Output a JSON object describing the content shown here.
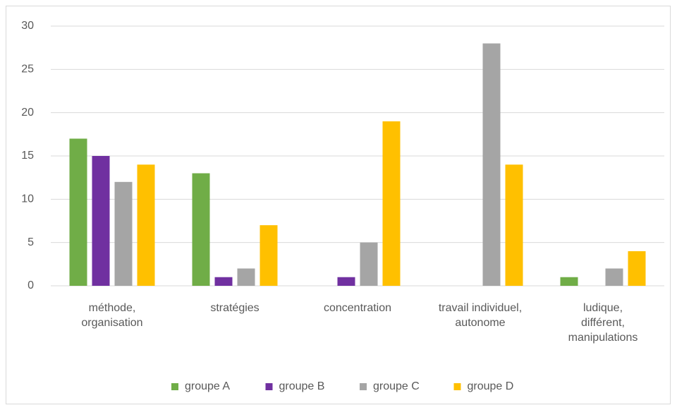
{
  "chart_data": {
    "type": "bar",
    "categories": [
      "méthode,\norganisation",
      "stratégies",
      "concentration",
      "travail individuel,\nautonome",
      "ludique,\ndifférent,\nmanipulations"
    ],
    "series": [
      {
        "name": "groupe A",
        "color": "#70ad47",
        "values": [
          17,
          13,
          0,
          0,
          1
        ]
      },
      {
        "name": "groupe B",
        "color": "#7030a0",
        "values": [
          15,
          1,
          1,
          0,
          0
        ]
      },
      {
        "name": "groupe C",
        "color": "#a5a5a5",
        "values": [
          12,
          2,
          5,
          28,
          2
        ]
      },
      {
        "name": "groupe D",
        "color": "#ffc000",
        "values": [
          14,
          7,
          19,
          14,
          4
        ]
      }
    ],
    "ylim": [
      0,
      30
    ],
    "yticks": [
      0,
      5,
      10,
      15,
      20,
      25,
      30
    ],
    "grid": true,
    "legend": "bottom"
  }
}
